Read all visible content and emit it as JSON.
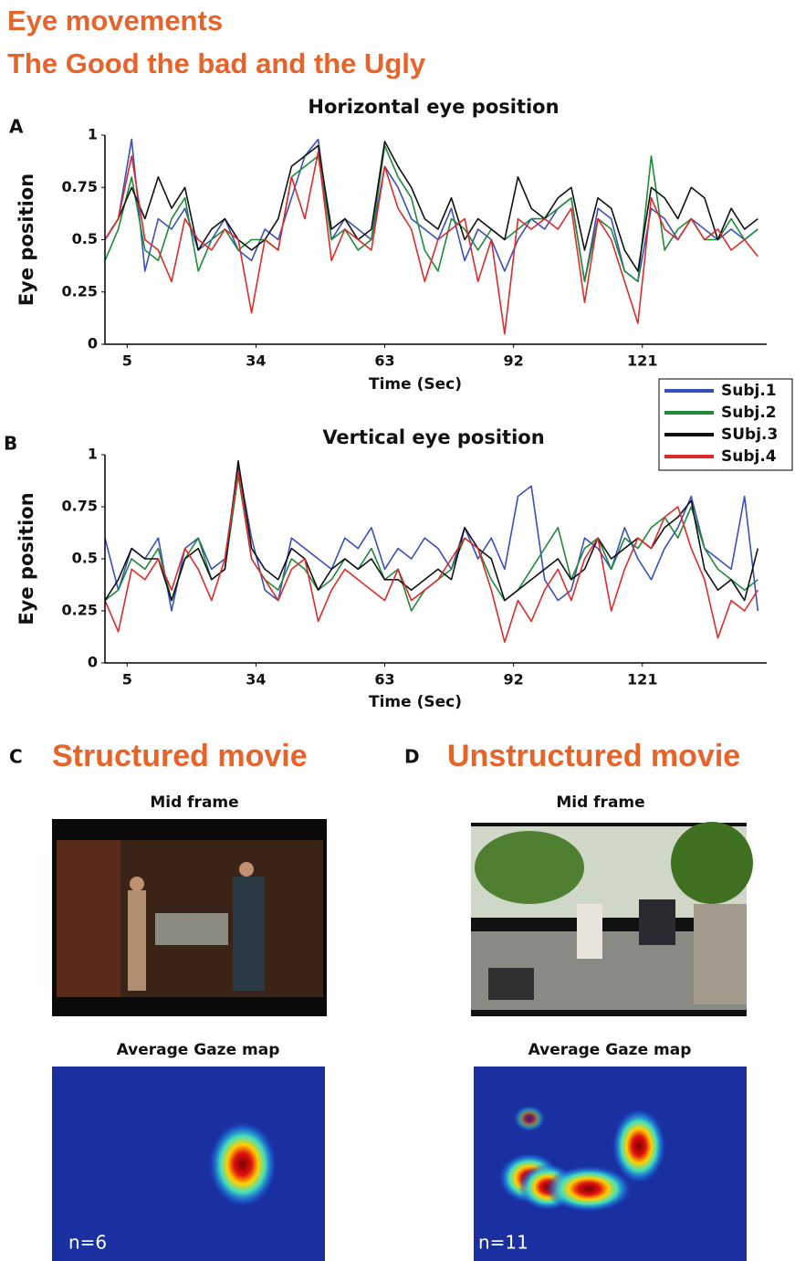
{
  "header": {
    "title_line1": "Eye movements",
    "title_line2": "The Good the bad and the Ugly"
  },
  "chart_data": [
    {
      "type": "line",
      "panel_label": "A",
      "title": "Horizontal eye position",
      "xlabel": "Time (Sec)",
      "ylabel": "Eye position",
      "x": [
        0,
        3,
        6,
        9,
        12,
        15,
        18,
        21,
        24,
        27,
        30,
        33,
        36,
        39,
        42,
        45,
        48,
        51,
        54,
        57,
        60,
        63,
        66,
        69,
        72,
        75,
        78,
        81,
        84,
        87,
        90,
        93,
        96,
        99,
        102,
        105,
        108,
        111,
        114,
        117,
        120,
        123,
        126,
        129,
        132,
        135,
        138,
        141,
        144,
        147
      ],
      "xlim": [
        0,
        149
      ],
      "xticks": [
        5,
        34,
        63,
        92,
        121
      ],
      "ylim": [
        0,
        1
      ],
      "yticks": [
        0,
        0.25,
        0.5,
        0.75,
        1
      ],
      "series": [
        {
          "name": "Subj.1",
          "color": "#3a4fbf",
          "values": [
            0.5,
            0.6,
            0.98,
            0.35,
            0.6,
            0.55,
            0.65,
            0.45,
            0.5,
            0.6,
            0.45,
            0.4,
            0.55,
            0.5,
            0.7,
            0.9,
            0.98,
            0.5,
            0.6,
            0.55,
            0.5,
            0.85,
            0.75,
            0.6,
            0.55,
            0.5,
            0.65,
            0.4,
            0.55,
            0.5,
            0.35,
            0.5,
            0.6,
            0.55,
            0.65,
            0.7,
            0.3,
            0.65,
            0.6,
            0.35,
            0.3,
            0.65,
            0.6,
            0.5,
            0.6,
            0.55,
            0.5,
            0.55,
            0.5,
            0.55
          ]
        },
        {
          "name": "Subj.2",
          "color": "#1f8a3a",
          "values": [
            0.4,
            0.55,
            0.8,
            0.45,
            0.4,
            0.6,
            0.7,
            0.35,
            0.5,
            0.55,
            0.45,
            0.5,
            0.5,
            0.45,
            0.8,
            0.85,
            0.9,
            0.5,
            0.55,
            0.45,
            0.5,
            0.95,
            0.8,
            0.7,
            0.45,
            0.35,
            0.6,
            0.55,
            0.45,
            0.55,
            0.5,
            0.55,
            0.6,
            0.6,
            0.65,
            0.7,
            0.3,
            0.6,
            0.55,
            0.35,
            0.3,
            0.9,
            0.45,
            0.55,
            0.6,
            0.5,
            0.5,
            0.6,
            0.5,
            0.55
          ]
        },
        {
          "name": "SUbj.3",
          "color": "#111111",
          "values": [
            0.5,
            0.6,
            0.75,
            0.6,
            0.8,
            0.65,
            0.75,
            0.45,
            0.55,
            0.6,
            0.5,
            0.45,
            0.5,
            0.6,
            0.85,
            0.9,
            0.95,
            0.55,
            0.6,
            0.5,
            0.55,
            0.97,
            0.85,
            0.75,
            0.6,
            0.55,
            0.7,
            0.5,
            0.6,
            0.55,
            0.5,
            0.8,
            0.65,
            0.6,
            0.7,
            0.75,
            0.45,
            0.7,
            0.65,
            0.45,
            0.35,
            0.75,
            0.7,
            0.6,
            0.75,
            0.7,
            0.5,
            0.65,
            0.55,
            0.6
          ]
        },
        {
          "name": "Subj.4",
          "color": "#e02a2a",
          "values": [
            0.5,
            0.6,
            0.9,
            0.5,
            0.45,
            0.3,
            0.6,
            0.5,
            0.45,
            0.55,
            0.5,
            0.15,
            0.5,
            0.45,
            0.8,
            0.6,
            0.92,
            0.4,
            0.55,
            0.5,
            0.45,
            0.85,
            0.65,
            0.55,
            0.3,
            0.5,
            0.55,
            0.6,
            0.3,
            0.5,
            0.05,
            0.6,
            0.55,
            0.6,
            0.55,
            0.65,
            0.2,
            0.6,
            0.5,
            0.3,
            0.1,
            0.7,
            0.55,
            0.5,
            0.6,
            0.5,
            0.55,
            0.45,
            0.5,
            0.42
          ]
        }
      ]
    },
    {
      "type": "line",
      "panel_label": "B",
      "title": "Vertical eye position",
      "xlabel": "Time (Sec)",
      "ylabel": "Eye position",
      "x": [
        0,
        3,
        6,
        9,
        12,
        15,
        18,
        21,
        24,
        27,
        30,
        33,
        36,
        39,
        42,
        45,
        48,
        51,
        54,
        57,
        60,
        63,
        66,
        69,
        72,
        75,
        78,
        81,
        84,
        87,
        90,
        93,
        96,
        99,
        102,
        105,
        108,
        111,
        114,
        117,
        120,
        123,
        126,
        129,
        132,
        135,
        138,
        141,
        144,
        147
      ],
      "xlim": [
        0,
        149
      ],
      "xticks": [
        5,
        34,
        63,
        92,
        121
      ],
      "ylim": [
        0,
        1
      ],
      "yticks": [
        0,
        0.25,
        0.5,
        0.75,
        1
      ],
      "series": [
        {
          "color": "#3a4fbf",
          "values": [
            0.6,
            0.35,
            0.55,
            0.5,
            0.6,
            0.25,
            0.55,
            0.6,
            0.45,
            0.5,
            0.95,
            0.6,
            0.35,
            0.3,
            0.6,
            0.55,
            0.5,
            0.45,
            0.6,
            0.55,
            0.65,
            0.45,
            0.55,
            0.5,
            0.6,
            0.55,
            0.45,
            0.65,
            0.5,
            0.6,
            0.45,
            0.8,
            0.85,
            0.4,
            0.3,
            0.35,
            0.6,
            0.55,
            0.45,
            0.65,
            0.5,
            0.4,
            0.55,
            0.65,
            0.8,
            0.55,
            0.5,
            0.45,
            0.8,
            0.25
          ]
        },
        {
          "color": "#1f8a3a",
          "values": [
            0.3,
            0.35,
            0.5,
            0.45,
            0.55,
            0.3,
            0.5,
            0.6,
            0.4,
            0.45,
            0.9,
            0.5,
            0.4,
            0.35,
            0.5,
            0.45,
            0.35,
            0.4,
            0.5,
            0.45,
            0.55,
            0.4,
            0.45,
            0.25,
            0.35,
            0.4,
            0.45,
            0.6,
            0.55,
            0.4,
            0.3,
            0.35,
            0.45,
            0.55,
            0.65,
            0.4,
            0.55,
            0.6,
            0.45,
            0.6,
            0.55,
            0.65,
            0.7,
            0.6,
            0.75,
            0.55,
            0.45,
            0.4,
            0.35,
            0.4
          ]
        },
        {
          "color": "#111111",
          "values": [
            0.3,
            0.4,
            0.55,
            0.5,
            0.5,
            0.3,
            0.5,
            0.55,
            0.4,
            0.45,
            0.97,
            0.55,
            0.45,
            0.4,
            0.55,
            0.5,
            0.35,
            0.45,
            0.5,
            0.45,
            0.5,
            0.4,
            0.4,
            0.35,
            0.4,
            0.45,
            0.4,
            0.65,
            0.55,
            0.5,
            0.3,
            0.35,
            0.4,
            0.45,
            0.5,
            0.4,
            0.45,
            0.6,
            0.5,
            0.55,
            0.6,
            0.55,
            0.65,
            0.7,
            0.78,
            0.45,
            0.35,
            0.4,
            0.3,
            0.55
          ]
        },
        {
          "color": "#e02a2a",
          "values": [
            0.3,
            0.15,
            0.45,
            0.4,
            0.5,
            0.35,
            0.55,
            0.45,
            0.3,
            0.5,
            0.92,
            0.5,
            0.4,
            0.3,
            0.45,
            0.5,
            0.2,
            0.35,
            0.45,
            0.4,
            0.35,
            0.3,
            0.45,
            0.3,
            0.35,
            0.4,
            0.5,
            0.6,
            0.55,
            0.35,
            0.1,
            0.3,
            0.2,
            0.35,
            0.45,
            0.3,
            0.5,
            0.6,
            0.25,
            0.45,
            0.6,
            0.55,
            0.7,
            0.75,
            0.55,
            0.4,
            0.12,
            0.3,
            0.25,
            0.35
          ]
        }
      ]
    }
  ],
  "panels": [
    {
      "label": "C",
      "title": "Structured movie",
      "frame_caption": "Mid frame",
      "map_caption": "Average Gaze map",
      "n_label": "n=6"
    },
    {
      "label": "D",
      "title": "Unstructured movie",
      "frame_caption": "Mid frame",
      "map_caption": "Average Gaze map",
      "n_label": "n=11"
    }
  ]
}
